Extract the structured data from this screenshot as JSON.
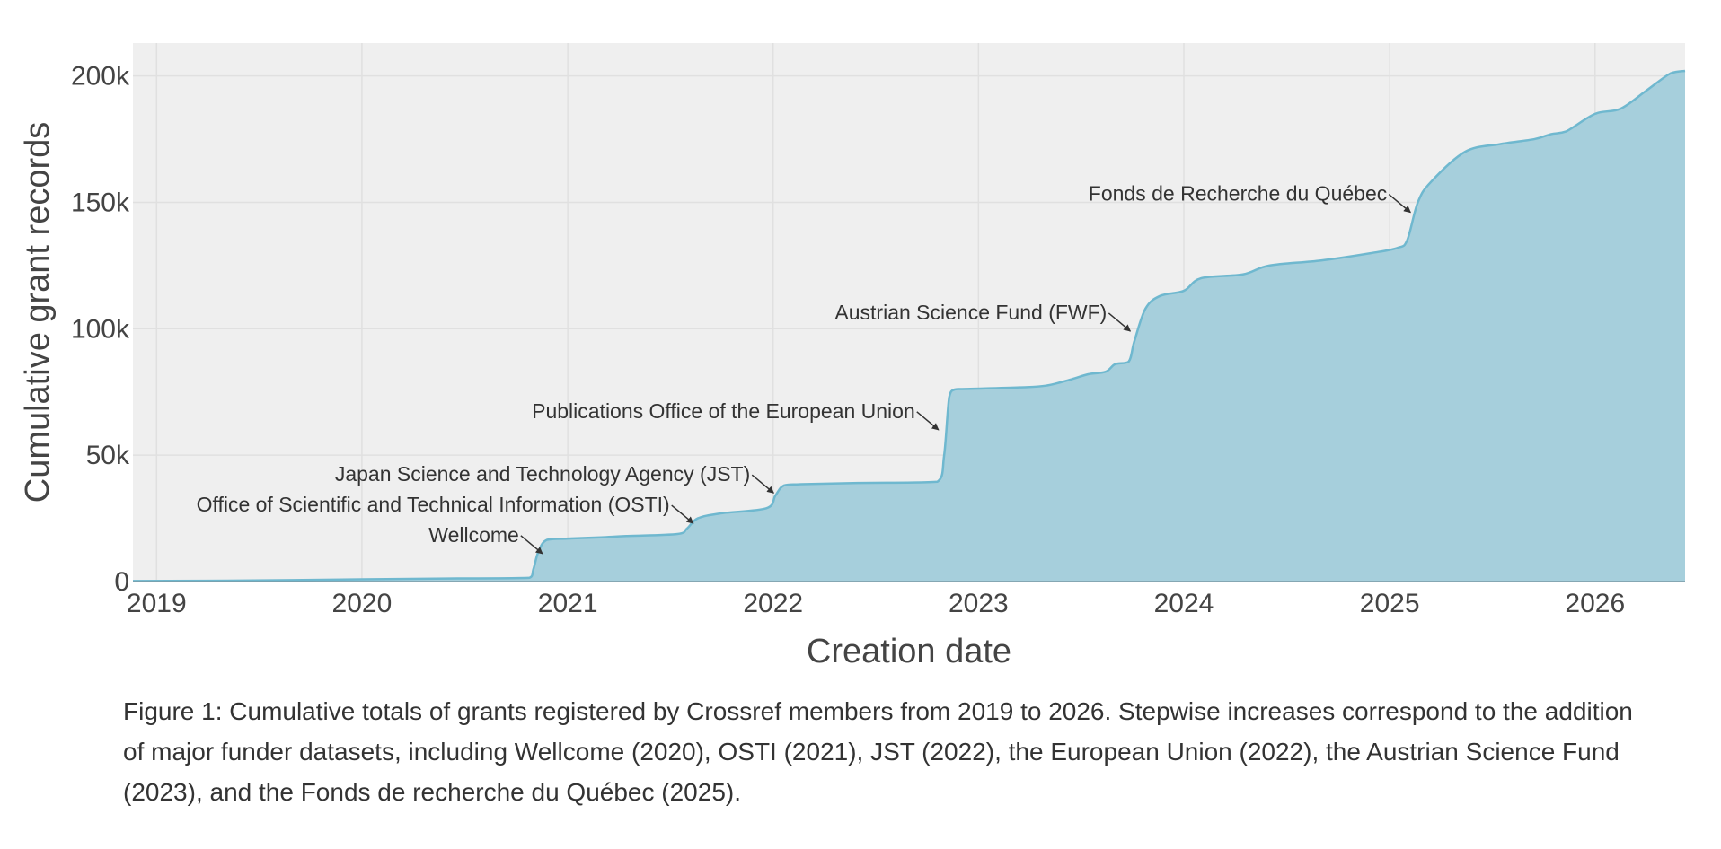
{
  "chart_data": {
    "type": "area",
    "xlabel": "Creation date",
    "ylabel": "Cumulative grant records",
    "xlim": [
      "2018-11-20",
      "2026-06-10"
    ],
    "ylim": [
      0,
      213000
    ],
    "x_ticks": [
      "2019",
      "2020",
      "2021",
      "2022",
      "2023",
      "2024",
      "2025",
      "2026"
    ],
    "y_ticks": [
      {
        "value": 0,
        "label": "0"
      },
      {
        "value": 50000,
        "label": "50k"
      },
      {
        "value": 100000,
        "label": "100k"
      },
      {
        "value": 150000,
        "label": "150k"
      },
      {
        "value": 200000,
        "label": "200k"
      }
    ],
    "grid": true,
    "background": "#efefef",
    "grid_color": "#e0e0e0",
    "fill_color": "#a6cfdc",
    "line_color": "#6fb8cf",
    "legend": "none",
    "series": [
      {
        "x": [
          "2018-11-20",
          "2019-06-01",
          "2020-01-01",
          "2020-06-01",
          "2020-10-25",
          "2020-11-01",
          "2020-11-10",
          "2020-11-25",
          "2021-01-01",
          "2021-03-01",
          "2021-04-15",
          "2021-07-15",
          "2021-08-01",
          "2021-08-20",
          "2021-10-01",
          "2021-12-20",
          "2022-01-05",
          "2022-01-20",
          "2022-02-20",
          "2022-06-01",
          "2022-10-20",
          "2022-11-01",
          "2022-11-10",
          "2022-11-20",
          "2022-12-10",
          "2023-03-15",
          "2023-05-01",
          "2023-06-15",
          "2023-07-15",
          "2023-08-15",
          "2023-09-01",
          "2023-09-25",
          "2023-10-05",
          "2023-10-25",
          "2023-11-20",
          "2024-01-01",
          "2024-02-01",
          "2024-04-15",
          "2024-06-01",
          "2024-09-01",
          "2024-12-01",
          "2025-01-15",
          "2025-02-01",
          "2025-02-20",
          "2025-03-15",
          "2025-05-15",
          "2025-07-15",
          "2025-09-15",
          "2025-10-15",
          "2025-11-10",
          "2026-01-01",
          "2026-02-15",
          "2026-04-01",
          "2026-05-15",
          "2026-06-10"
        ],
        "y": [
          200,
          400,
          900,
          1200,
          1500,
          5000,
          12000,
          16500,
          17000,
          17500,
          18000,
          18800,
          21000,
          25000,
          27000,
          29000,
          34000,
          38000,
          38500,
          39000,
          39500,
          50000,
          73000,
          76000,
          76200,
          76800,
          77500,
          80000,
          82000,
          83000,
          86000,
          87000,
          95000,
          108000,
          113000,
          115000,
          120000,
          121500,
          125000,
          127000,
          130000,
          132000,
          135000,
          150000,
          158000,
          170000,
          173000,
          175000,
          177000,
          178000,
          185000,
          187000,
          194000,
          201000,
          202000
        ]
      }
    ],
    "annotations": [
      {
        "text": "Wellcome",
        "x": "2020-11-20",
        "y": 10000
      },
      {
        "text": "Office of Scientific and Technical Information (OSTI)",
        "x": "2021-08-15",
        "y": 22000
      },
      {
        "text": "Japan Science and Technology Agency (JST)",
        "x": "2022-01-05",
        "y": 34000
      },
      {
        "text": "Publications Office of the European Union",
        "x": "2022-10-25",
        "y": 59000
      },
      {
        "text": "Austrian Science Fund (FWF)",
        "x": "2023-10-01",
        "y": 98000
      },
      {
        "text": "Fonds de Recherche du Québec",
        "x": "2025-02-10",
        "y": 145000
      }
    ]
  },
  "caption": "Figure 1: Cumulative totals of grants registered by Crossref members from 2019 to 2026. Stepwise increases correspond to the addition of major funder datasets, including Wellcome (2020), OSTI (2021), JST (2022), the European Union (2022), the Austrian Science Fund (2023), and the Fonds de recherche du Québec (2025)."
}
